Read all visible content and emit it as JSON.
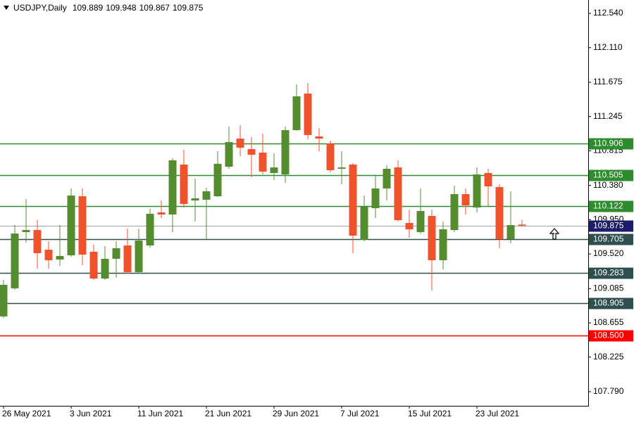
{
  "chart_data": {
    "type": "candlestick",
    "symbol": "USDJPY,Daily",
    "categories": [
      "26 May 2021",
      null,
      null,
      null,
      null,
      null,
      "3 Jun 2021",
      null,
      null,
      null,
      null,
      null,
      "11 Jun 2021",
      null,
      null,
      null,
      null,
      null,
      "21 Jun 2021",
      null,
      null,
      null,
      null,
      null,
      "29 Jun 2021",
      null,
      null,
      null,
      null,
      null,
      "7 Jul 2021",
      null,
      null,
      null,
      null,
      null,
      "15 Jul 2021",
      null,
      null,
      null,
      null,
      null,
      "23 Jul 2021",
      null,
      null,
      null,
      null
    ],
    "open": [
      108.735,
      109.088,
      109.794,
      109.82,
      109.573,
      109.45,
      109.503,
      110.244,
      109.547,
      109.211,
      109.459,
      109.626,
      109.291,
      109.626,
      110.041,
      110.015,
      110.642,
      110.191,
      110.2,
      110.244,
      110.615,
      110.968,
      110.836,
      110.792,
      110.536,
      110.518,
      111.074,
      111.533,
      110.995,
      110.907,
      110.589,
      110.642,
      109.697,
      110.094,
      110.342,
      110.606,
      109.909,
      109.794,
      109.997,
      109.441,
      109.82,
      110.271,
      110.103,
      110.536,
      110.359,
      109.706,
      109.889
    ],
    "high": [
      109.194,
      109.882,
      110.209,
      109.944,
      109.679,
      109.882,
      110.342,
      110.342,
      109.635,
      109.617,
      109.679,
      109.838,
      109.838,
      110.085,
      110.191,
      110.721,
      110.827,
      110.465,
      110.35,
      110.81,
      111.119,
      111.136,
      110.986,
      111.03,
      110.783,
      111.119,
      111.648,
      111.666,
      111.101,
      110.942,
      110.809,
      110.659,
      110.253,
      110.5,
      110.633,
      110.695,
      110.076,
      110.342,
      110.076,
      109.927,
      110.377,
      110.342,
      110.606,
      110.589,
      110.395,
      110.306,
      109.948
    ],
    "low": [
      108.715,
      109.07,
      109.662,
      109.335,
      109.335,
      109.37,
      109.485,
      109.379,
      109.194,
      109.194,
      109.22,
      109.273,
      109.273,
      109.6,
      109.971,
      109.794,
      110.103,
      109.927,
      109.706,
      110.236,
      110.589,
      110.748,
      110.483,
      110.518,
      110.447,
      110.412,
      111.066,
      110.96,
      110.809,
      110.545,
      110.395,
      109.529,
      109.679,
      109.971,
      110.191,
      109.927,
      109.723,
      109.776,
      109.061,
      109.326,
      109.794,
      110.015,
      110.041,
      110.121,
      109.591,
      109.653,
      109.867
    ],
    "close": [
      109.132,
      109.776,
      109.82,
      109.529,
      109.441,
      109.494,
      110.253,
      109.512,
      109.211,
      109.459,
      109.591,
      109.291,
      109.688,
      110.024,
      110.015,
      110.695,
      110.147,
      110.218,
      110.306,
      110.651,
      110.924,
      110.854,
      110.765,
      110.553,
      110.606,
      111.074,
      111.498,
      111.013,
      110.968,
      110.571,
      110.606,
      109.75,
      110.112,
      110.342,
      110.589,
      109.944,
      109.829,
      110.059,
      109.441,
      109.829,
      110.271,
      110.13,
      110.518,
      110.368,
      109.706,
      109.882,
      109.875
    ],
    "up_color": "#548c30",
    "down_color": "#f0522d",
    "ylim": [
      107.613,
      112.708
    ],
    "yticks": [
      {
        "value": 112.54,
        "label": "112.540"
      },
      {
        "value": 112.11,
        "label": "112.110"
      },
      111.675,
      111.245,
      110.815,
      {
        "value": 110.38,
        "label": "110.380"
      },
      {
        "value": 109.95,
        "label": "109.950"
      },
      {
        "value": 109.52,
        "label": "109.520"
      },
      109.085,
      108.655,
      108.225,
      {
        "value": 107.79,
        "label": "107.790"
      }
    ],
    "levels": [
      {
        "value": 110.906,
        "color": "#2e8b2e"
      },
      {
        "value": 110.505,
        "color": "#2e8b2e"
      },
      {
        "value": 110.122,
        "color": "#2e8b2e"
      },
      {
        "value": 109.705,
        "color": "#2f4f4f"
      },
      {
        "value": 109.283,
        "color": "#2f4f4f"
      },
      {
        "value": 108.905,
        "color": "#2f4f4f"
      },
      {
        "value": 108.5,
        "label": "108.500",
        "color": "#ff0000"
      }
    ],
    "current_price_color": "#1c1c6b"
  }
}
